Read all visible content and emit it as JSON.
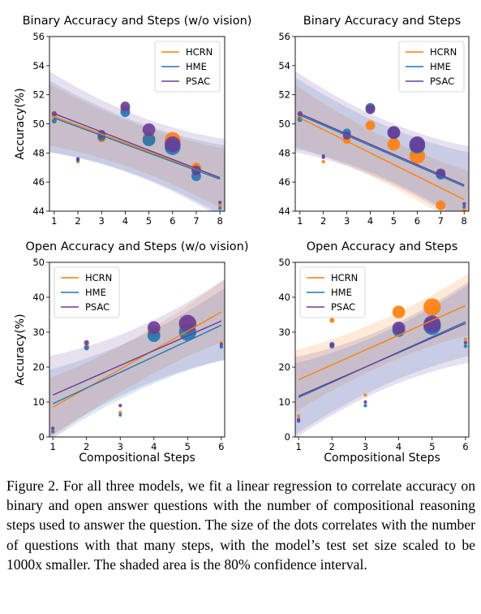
{
  "colors": {
    "HCRN": "#ff7f0e",
    "HME": "#1f77b4",
    "PSAC": "#6a3d9a"
  },
  "chart_data": [
    {
      "type": "scatter",
      "title": "Binary Accuracy and Steps (w/o vision)",
      "xlabel": "",
      "ylabel": "Accuracy(%)",
      "xlim": [
        0.8,
        8.2
      ],
      "ylim": [
        44,
        56
      ],
      "xticks": [
        1,
        2,
        3,
        4,
        5,
        6,
        7,
        8
      ],
      "yticks": [
        44,
        46,
        48,
        50,
        52,
        54,
        56
      ],
      "legend_position": "top-right",
      "series": [
        {
          "name": "HCRN",
          "points": [
            [
              1,
              50.5,
              2
            ],
            [
              2,
              47.4,
              1
            ],
            [
              3,
              49.0,
              4
            ],
            [
              4,
              51.0,
              5
            ],
            [
              5,
              49.0,
              7
            ],
            [
              6,
              48.9,
              9
            ],
            [
              7,
              47.0,
              5
            ],
            [
              8,
              44.4,
              1
            ]
          ],
          "fit": [
            [
              1,
              50.5
            ],
            [
              8,
              46.3
            ]
          ]
        },
        {
          "name": "HME",
          "points": [
            [
              1,
              50.2,
              2
            ],
            [
              2,
              47.5,
              1
            ],
            [
              3,
              49.1,
              4
            ],
            [
              4,
              50.8,
              5
            ],
            [
              5,
              48.9,
              7
            ],
            [
              6,
              48.4,
              9
            ],
            [
              7,
              46.4,
              5
            ],
            [
              8,
              44.2,
              1
            ]
          ],
          "fit": [
            [
              1,
              50.4
            ],
            [
              8,
              46.2
            ]
          ]
        },
        {
          "name": "PSAC",
          "points": [
            [
              1,
              50.7,
              2
            ],
            [
              2,
              47.6,
              1
            ],
            [
              3,
              49.3,
              4
            ],
            [
              4,
              51.2,
              5
            ],
            [
              5,
              49.6,
              7
            ],
            [
              6,
              48.6,
              9
            ],
            [
              7,
              46.8,
              5
            ],
            [
              8,
              44.6,
              1
            ]
          ],
          "fit": [
            [
              1,
              50.7
            ],
            [
              8,
              46.3
            ]
          ]
        }
      ]
    },
    {
      "type": "scatter",
      "title": "Binary Accuracy and Steps",
      "xlabel": "",
      "ylabel": "",
      "xlim": [
        0.8,
        8.2
      ],
      "ylim": [
        44,
        56
      ],
      "xticks": [
        1,
        2,
        3,
        4,
        5,
        6,
        7,
        8
      ],
      "yticks": [
        44,
        46,
        48,
        50,
        52,
        54,
        56
      ],
      "legend_position": "top-right",
      "series": [
        {
          "name": "HCRN",
          "points": [
            [
              1,
              50.5,
              2
            ],
            [
              2,
              47.4,
              1
            ],
            [
              3,
              48.9,
              4
            ],
            [
              4,
              49.9,
              5
            ],
            [
              5,
              48.6,
              7
            ],
            [
              6,
              47.8,
              9
            ],
            [
              7,
              44.4,
              5
            ],
            [
              8,
              44.1,
              1
            ]
          ],
          "fit": [
            [
              1,
              50.4
            ],
            [
              8,
              44.8
            ]
          ]
        },
        {
          "name": "HME",
          "points": [
            [
              1,
              50.3,
              2
            ],
            [
              2,
              47.8,
              1
            ],
            [
              3,
              49.4,
              4
            ],
            [
              4,
              51.1,
              5
            ],
            [
              5,
              49.4,
              7
            ],
            [
              6,
              48.5,
              9
            ],
            [
              7,
              46.5,
              5
            ],
            [
              8,
              44.3,
              1
            ]
          ],
          "fit": [
            [
              1,
              50.6
            ],
            [
              8,
              45.7
            ]
          ]
        },
        {
          "name": "PSAC",
          "points": [
            [
              1,
              50.7,
              2
            ],
            [
              2,
              47.7,
              1
            ],
            [
              3,
              49.2,
              4
            ],
            [
              4,
              51.0,
              5
            ],
            [
              5,
              49.4,
              7
            ],
            [
              6,
              48.6,
              9
            ],
            [
              7,
              46.6,
              5
            ],
            [
              8,
              44.5,
              1
            ]
          ],
          "fit": [
            [
              1,
              50.7
            ],
            [
              8,
              45.8
            ]
          ]
        }
      ]
    },
    {
      "type": "scatter",
      "title": "Open Accuracy and Steps (w/o vision)",
      "xlabel": "Compositional Steps",
      "ylabel": "Accuracy(%)",
      "xlim": [
        0.9,
        6.1
      ],
      "ylim": [
        0,
        50
      ],
      "xticks": [
        1,
        2,
        3,
        4,
        5,
        6
      ],
      "yticks": [
        0,
        10,
        20,
        30,
        40,
        50
      ],
      "legend_position": "top-left",
      "series": [
        {
          "name": "HCRN",
          "points": [
            [
              1,
              2.0,
              1
            ],
            [
              2,
              26.0,
              2
            ],
            [
              3,
              7.0,
              1
            ],
            [
              4,
              30.0,
              7
            ],
            [
              5,
              32.0,
              10
            ],
            [
              6,
              27.0,
              1
            ]
          ],
          "fit": [
            [
              1,
              8.5
            ],
            [
              6,
              35.8
            ]
          ]
        },
        {
          "name": "HME",
          "points": [
            [
              1,
              1.5,
              1
            ],
            [
              2,
              25.5,
              2
            ],
            [
              3,
              6.3,
              1
            ],
            [
              4,
              29.0,
              7
            ],
            [
              5,
              30.0,
              10
            ],
            [
              6,
              25.8,
              1
            ]
          ],
          "fit": [
            [
              1,
              9.5
            ],
            [
              6,
              32.0
            ]
          ]
        },
        {
          "name": "PSAC",
          "points": [
            [
              1,
              2.5,
              1
            ],
            [
              2,
              27.0,
              2
            ],
            [
              3,
              9.0,
              1
            ],
            [
              4,
              31.3,
              7
            ],
            [
              5,
              32.5,
              10
            ],
            [
              6,
              26.5,
              1
            ]
          ],
          "fit": [
            [
              1,
              12.0
            ],
            [
              6,
              33.2
            ]
          ]
        }
      ]
    },
    {
      "type": "scatter",
      "title": "Open Accuracy and Steps",
      "xlabel": "Compositional Steps",
      "ylabel": "",
      "xlim": [
        0.9,
        6.1
      ],
      "ylim": [
        0,
        50
      ],
      "xticks": [
        1,
        2,
        3,
        4,
        5,
        6
      ],
      "yticks": [
        0,
        10,
        20,
        30,
        40,
        50
      ],
      "legend_position": "top-left",
      "series": [
        {
          "name": "HCRN",
          "points": [
            [
              1,
              6.0,
              1
            ],
            [
              2,
              33.4,
              2
            ],
            [
              3,
              12.0,
              1
            ],
            [
              4,
              35.8,
              7
            ],
            [
              5,
              37.2,
              10
            ],
            [
              6,
              28.0,
              1
            ]
          ],
          "fit": [
            [
              1,
              16.4
            ],
            [
              6,
              37.6
            ]
          ]
        },
        {
          "name": "HME",
          "points": [
            [
              1,
              4.5,
              1
            ],
            [
              2,
              26.0,
              2
            ],
            [
              3,
              9.0,
              1
            ],
            [
              4,
              30.5,
              7
            ],
            [
              5,
              31.7,
              10
            ],
            [
              6,
              26.0,
              1
            ]
          ],
          "fit": [
            [
              1,
              11.3
            ],
            [
              6,
              33.0
            ]
          ]
        },
        {
          "name": "PSAC",
          "points": [
            [
              1,
              5.0,
              1
            ],
            [
              2,
              26.5,
              2
            ],
            [
              3,
              10.0,
              1
            ],
            [
              4,
              31.2,
              7
            ],
            [
              5,
              32.3,
              10
            ],
            [
              6,
              27.0,
              1
            ]
          ],
          "fit": [
            [
              1,
              11.7
            ],
            [
              6,
              32.5
            ]
          ]
        }
      ]
    }
  ],
  "caption": "Figure 2. For all three models, we fit a linear regression to correlate accuracy on binary and open answer questions with the number of compositional reasoning steps used to answer the question. The size of the dots correlates with the number of questions with that many steps, with the model’s test set size scaled to be 1000x smaller. The shaded area is the 80% confidence interval."
}
